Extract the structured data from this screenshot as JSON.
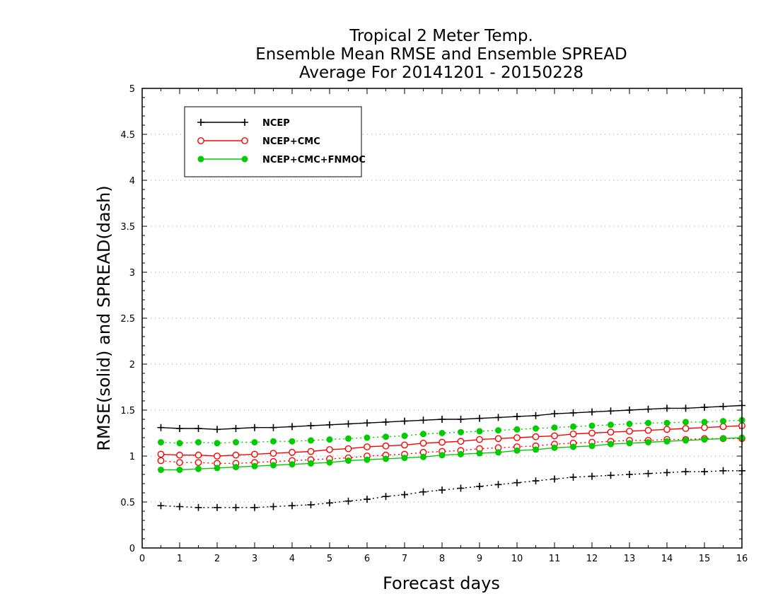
{
  "chart_data": {
    "type": "line",
    "title": "Tropical 2 Meter Temp.",
    "subtitle": "Ensemble Mean RMSE and Ensemble SPREAD",
    "subtitle2": "Average For 20141201 - 20150228",
    "xlabel": "Forecast days",
    "ylabel": "RMSE(solid) and SPREAD(dash)",
    "xlim": [
      0,
      16
    ],
    "ylim": [
      0,
      5
    ],
    "xticks": [
      "0",
      "1",
      "2",
      "3",
      "4",
      "5",
      "6",
      "7",
      "8",
      "9",
      "10",
      "11",
      "12",
      "13",
      "14",
      "15",
      "16"
    ],
    "yticks": [
      "0",
      "0.5",
      "1",
      "1.5",
      "2",
      "2.5",
      "3",
      "3.5",
      "4",
      "4.5",
      "5"
    ],
    "grid": "horizontal dotted",
    "legend_position": "top-left",
    "x": [
      0.5,
      1,
      1.5,
      2,
      2.5,
      3,
      3.5,
      4,
      4.5,
      5,
      5.5,
      6,
      6.5,
      7,
      7.5,
      8,
      8.5,
      9,
      9.5,
      10,
      10.5,
      11,
      11.5,
      12,
      12.5,
      13,
      13.5,
      14,
      14.5,
      15,
      15.5,
      16
    ],
    "series": [
      {
        "name": "NCEP",
        "color": "#000000",
        "marker": "plus",
        "rmse": [
          1.31,
          1.3,
          1.3,
          1.29,
          1.3,
          1.31,
          1.31,
          1.32,
          1.33,
          1.34,
          1.35,
          1.36,
          1.37,
          1.38,
          1.39,
          1.4,
          1.4,
          1.41,
          1.42,
          1.43,
          1.44,
          1.46,
          1.47,
          1.48,
          1.49,
          1.5,
          1.51,
          1.52,
          1.52,
          1.53,
          1.54,
          1.55
        ],
        "spread": [
          0.46,
          0.45,
          0.44,
          0.44,
          0.44,
          0.44,
          0.45,
          0.46,
          0.47,
          0.49,
          0.51,
          0.53,
          0.56,
          0.58,
          0.61,
          0.63,
          0.65,
          0.67,
          0.69,
          0.71,
          0.73,
          0.75,
          0.77,
          0.78,
          0.79,
          0.8,
          0.81,
          0.82,
          0.83,
          0.83,
          0.84,
          0.84
        ]
      },
      {
        "name": "NCEP+CMC",
        "color": "#ff0000",
        "marker": "open-circle",
        "rmse": [
          1.02,
          1.01,
          1.01,
          1.0,
          1.01,
          1.02,
          1.03,
          1.04,
          1.05,
          1.07,
          1.08,
          1.1,
          1.11,
          1.12,
          1.14,
          1.15,
          1.16,
          1.18,
          1.19,
          1.2,
          1.21,
          1.22,
          1.24,
          1.25,
          1.26,
          1.27,
          1.28,
          1.29,
          1.3,
          1.31,
          1.32,
          1.33
        ],
        "spread": [
          0.95,
          0.93,
          0.93,
          0.92,
          0.92,
          0.93,
          0.94,
          0.95,
          0.96,
          0.97,
          0.98,
          1.0,
          1.01,
          1.02,
          1.04,
          1.05,
          1.06,
          1.08,
          1.09,
          1.1,
          1.11,
          1.13,
          1.14,
          1.15,
          1.16,
          1.17,
          1.17,
          1.18,
          1.18,
          1.19,
          1.19,
          1.19
        ]
      },
      {
        "name": "NCEP+CMC+FNMOC",
        "color": "#00cc00",
        "marker": "filled-circle",
        "rmse": [
          0.85,
          0.85,
          0.86,
          0.87,
          0.88,
          0.89,
          0.9,
          0.91,
          0.92,
          0.93,
          0.95,
          0.96,
          0.97,
          0.98,
          0.99,
          1.01,
          1.02,
          1.03,
          1.04,
          1.06,
          1.07,
          1.09,
          1.1,
          1.11,
          1.13,
          1.14,
          1.15,
          1.16,
          1.17,
          1.18,
          1.19,
          1.2
        ],
        "spread": [
          1.15,
          1.14,
          1.15,
          1.14,
          1.15,
          1.15,
          1.16,
          1.16,
          1.17,
          1.18,
          1.19,
          1.2,
          1.21,
          1.22,
          1.24,
          1.25,
          1.26,
          1.27,
          1.28,
          1.29,
          1.3,
          1.31,
          1.32,
          1.33,
          1.34,
          1.35,
          1.36,
          1.36,
          1.37,
          1.37,
          1.38,
          1.39
        ]
      }
    ]
  }
}
